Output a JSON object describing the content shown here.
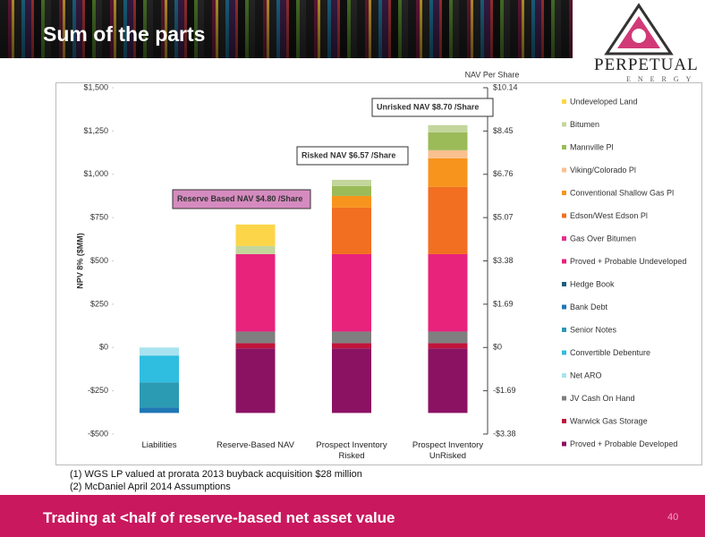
{
  "slide": {
    "title": "Sum of the parts",
    "logo_name": "PERPETUAL",
    "logo_sub": "ENERGY",
    "notes": [
      "(1) WGS LP valued at prorata 2013 buyback acquisition $28 million",
      "(2) McDaniel April 2014 Assumptions"
    ],
    "banner": "Trading at <half of reserve-based net asset value",
    "page_number": "40"
  },
  "chart_data": {
    "type": "bar",
    "stacked": true,
    "ylabel": "NPV 8% ($MM)",
    "y2label": "NAV Per Share",
    "categories": [
      "Liabilities",
      "Reserve-Based NAV",
      "Prospect Inventory Risked",
      "Prospect Inventory UnRisked"
    ],
    "ylim": [
      -500,
      1500
    ],
    "yticks": [
      {
        "value": -500,
        "label": "-$500"
      },
      {
        "value": -250,
        "label": "-$250"
      },
      {
        "value": 0,
        "label": "$0"
      },
      {
        "value": 250,
        "label": "$250"
      },
      {
        "value": 500,
        "label": "$500"
      },
      {
        "value": 750,
        "label": "$750"
      },
      {
        "value": 1000,
        "label": "$1,000"
      },
      {
        "value": 1250,
        "label": "$1,250"
      },
      {
        "value": 1500,
        "label": "$1,500"
      }
    ],
    "y2lim": [
      -3.38,
      10.14
    ],
    "y2ticks": [
      {
        "value": -3.38,
        "label": "-$3.38"
      },
      {
        "value": -1.69,
        "label": "-$1.69"
      },
      {
        "value": 0,
        "label": "$0"
      },
      {
        "value": 1.69,
        "label": "$1.69"
      },
      {
        "value": 3.38,
        "label": "$3.38"
      },
      {
        "value": 5.07,
        "label": "$5.07"
      },
      {
        "value": 6.76,
        "label": "$6.76"
      },
      {
        "value": 8.45,
        "label": "$8.45"
      },
      {
        "value": 10.14,
        "label": "$10.14"
      }
    ],
    "series": [
      {
        "name": "Undeveloped Land",
        "color": "#fcd548",
        "values": [
          null,
          124,
          null,
          null
        ]
      },
      {
        "name": "Bitumen",
        "color": "#c3d69b",
        "values": [
          null,
          47,
          36,
          42
        ]
      },
      {
        "name": "Mannville Pl",
        "color": "#9bbb59",
        "values": [
          null,
          null,
          57,
          103
        ]
      },
      {
        "name": "Viking/Colorado Pl",
        "color": "#fac090",
        "values": [
          null,
          null,
          null,
          47
        ]
      },
      {
        "name": "Conventional Shallow Gas Pl",
        "color": "#f7941d",
        "values": [
          null,
          null,
          67,
          165
        ]
      },
      {
        "name": "Edson/West Edson Pl",
        "color": "#f26f21",
        "values": [
          null,
          null,
          269,
          388
        ]
      },
      {
        "name": "Gas Over Bitumen",
        "color": "#e6308a",
        "values": [
          null,
          null,
          null,
          null
        ]
      },
      {
        "name": "Proved + Probable Undeveloped",
        "color": "#e8237c",
        "values": [
          null,
          447,
          447,
          447
        ]
      },
      {
        "name": "Hedge Book",
        "color": "#1f5f7a",
        "values": [
          null,
          null,
          null,
          null
        ]
      },
      {
        "name": "Bank Debt",
        "color": "#1f77b4",
        "values": [
          -31,
          null,
          null,
          null
        ]
      },
      {
        "name": "Senior Notes",
        "color": "#2b9ab3",
        "values": [
          -145,
          null,
          null,
          null
        ]
      },
      {
        "name": "Convertible Debenture",
        "color": "#2fbde0",
        "values": [
          -155,
          null,
          null,
          null
        ]
      },
      {
        "name": "Net ARO",
        "color": "#a9e3ef",
        "values": [
          -47,
          null,
          null,
          null
        ]
      },
      {
        "name": "JV Cash On Hand",
        "color": "#7f7f7f",
        "values": [
          null,
          67,
          67,
          67
        ]
      },
      {
        "name": "Warwick Gas Storage",
        "color": "#c0143c",
        "values": [
          null,
          30,
          30,
          30
        ]
      },
      {
        "name": "Proved + Probable Developed",
        "color": "#8b1263",
        "values": [
          null,
          373,
          373,
          373
        ]
      }
    ],
    "annotations": [
      "Reserve Based NAV $4.80 /Share",
      "Risked NAV $6.57 /Share",
      "Unrisked NAV $8.70 /Share"
    ]
  }
}
